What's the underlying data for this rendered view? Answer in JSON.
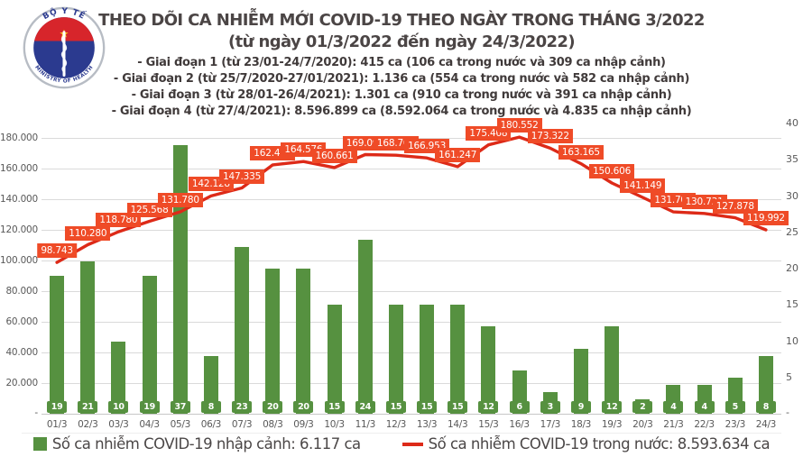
{
  "header": {
    "title": "THEO DÕI CA NHIỄM MỚI COVID-19 THEO NGÀY TRONG THÁNG 3/2022",
    "subtitle": "(từ ngày 01/3/2022 đến ngày 24/3/2022)",
    "bullets": [
      "- Giai đoạn 1 (từ 23/01-24/7/2020): 415 ca (106 ca trong nước và 309 ca nhập cảnh)",
      "- Giai đoạn 2 (từ 25/7/2020-27/01/2021): 1.136 ca (554 ca trong nước và 582 ca nhập cảnh)",
      "- Giai đoạn 3 (từ 28/01-26/4/2021): 1.301 ca (910 ca trong nước và 391 ca nhập cảnh)",
      "- Giai đoạn 4 (từ 27/4/2021): 8.596.899 ca (8.592.064 ca trong nước và 4.835 ca nhập cảnh)"
    ]
  },
  "logo": {
    "top_text": "BỘ Y TẾ",
    "bottom_text": "MINISTRY OF HEALTH"
  },
  "colors": {
    "bar_green": "#569140",
    "line_red": "#dd2a18",
    "line_label_bg": "#ef4b27",
    "grid": "#dadada",
    "axis_text": "#595959",
    "title_text": "#4b4545"
  },
  "chart_data": {
    "type": "bar+line combo",
    "title": "THEO DÕI CA NHIỄM MỚI COVID-19 THEO NGÀY TRONG THÁNG 3/2022",
    "subtitle": "(từ ngày 01/3/2022 đến ngày 24/3/2022)",
    "categories": [
      "01/3",
      "02/3",
      "03/3",
      "04/3",
      "05/3",
      "06/3",
      "07/3",
      "08/3",
      "09/3",
      "10/3",
      "11/3",
      "12/3",
      "13/3",
      "14/3",
      "15/3",
      "16/3",
      "17/3",
      "18/3",
      "19/3",
      "20/3",
      "21/3",
      "22/3",
      "23/3",
      "24/3"
    ],
    "series": [
      {
        "name": "Số ca nhiễm COVID-19 nhập cảnh",
        "type": "bar",
        "axis": "right",
        "color": "#569140",
        "values": [
          19,
          21,
          10,
          19,
          37,
          8,
          23,
          20,
          20,
          15,
          24,
          15,
          15,
          15,
          12,
          6,
          3,
          9,
          12,
          2,
          4,
          4,
          5,
          8
        ]
      },
      {
        "name": "Số ca nhiễm COVID-19 trong nước",
        "type": "line",
        "axis": "left",
        "color": "#dd2a18",
        "label_bg": "#ef4b27",
        "values": [
          98743,
          110280,
          118780,
          125568,
          131780,
          142128,
          147335,
          162415,
          164576,
          160661,
          169090,
          168704,
          166953,
          161247,
          175468,
          180552,
          173322,
          163165,
          150606,
          141149,
          131709,
          130731,
          127878,
          119992
        ],
        "labels": [
          "98.743",
          "110.280",
          "118.780",
          "125.568",
          "131.780",
          "142.128",
          "147.335",
          "162.415",
          "164.576",
          "160.661",
          "169.090",
          "168.704",
          "166.953",
          "161.247",
          "175.468",
          "180.552",
          "173.322",
          "163.165",
          "150.606",
          "141.149",
          "131.709",
          "130.731",
          "127.878",
          "119.992"
        ]
      }
    ],
    "left_axis": {
      "tick_labels": [
        "180.000",
        "160.000",
        "140.000",
        "120.000",
        "100.000",
        "80.000",
        "60.000",
        "40.000",
        "20.000"
      ],
      "tick_values": [
        180000,
        160000,
        140000,
        120000,
        100000,
        80000,
        60000,
        40000,
        20000
      ],
      "zero_label": "-",
      "range": [
        0,
        190500
      ]
    },
    "right_axis": {
      "tick_labels": [
        "40",
        "35",
        "30",
        "25",
        "20",
        "15",
        "10",
        "5"
      ],
      "tick_values": [
        40,
        35,
        30,
        25,
        20,
        15,
        10,
        5
      ],
      "zero_label": "-",
      "range": [
        0,
        40.25
      ]
    },
    "grid": "horizontal only",
    "legend_position": "bottom",
    "legend": [
      {
        "swatch": "bar",
        "color": "#569140",
        "label": "Số ca nhiễm COVID-19 nhập cảnh: 6.117 ca"
      },
      {
        "swatch": "line",
        "color": "#dd2a18",
        "label": "Số ca nhiễm COVID-19 trong nước: 8.593.634 ca"
      }
    ]
  }
}
